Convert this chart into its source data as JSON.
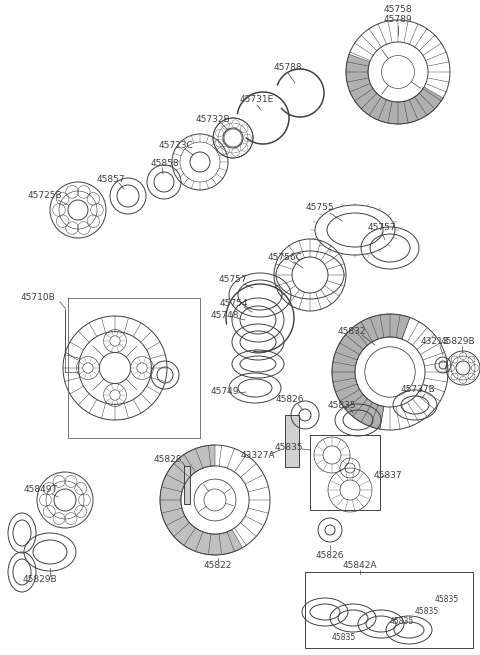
{
  "bg_color": "#ffffff",
  "lc": "#404040",
  "lw": 0.7,
  "figsize": [
    4.8,
    6.55
  ],
  "dpi": 100,
  "xlim": [
    0,
    480
  ],
  "ylim": [
    0,
    655
  ]
}
